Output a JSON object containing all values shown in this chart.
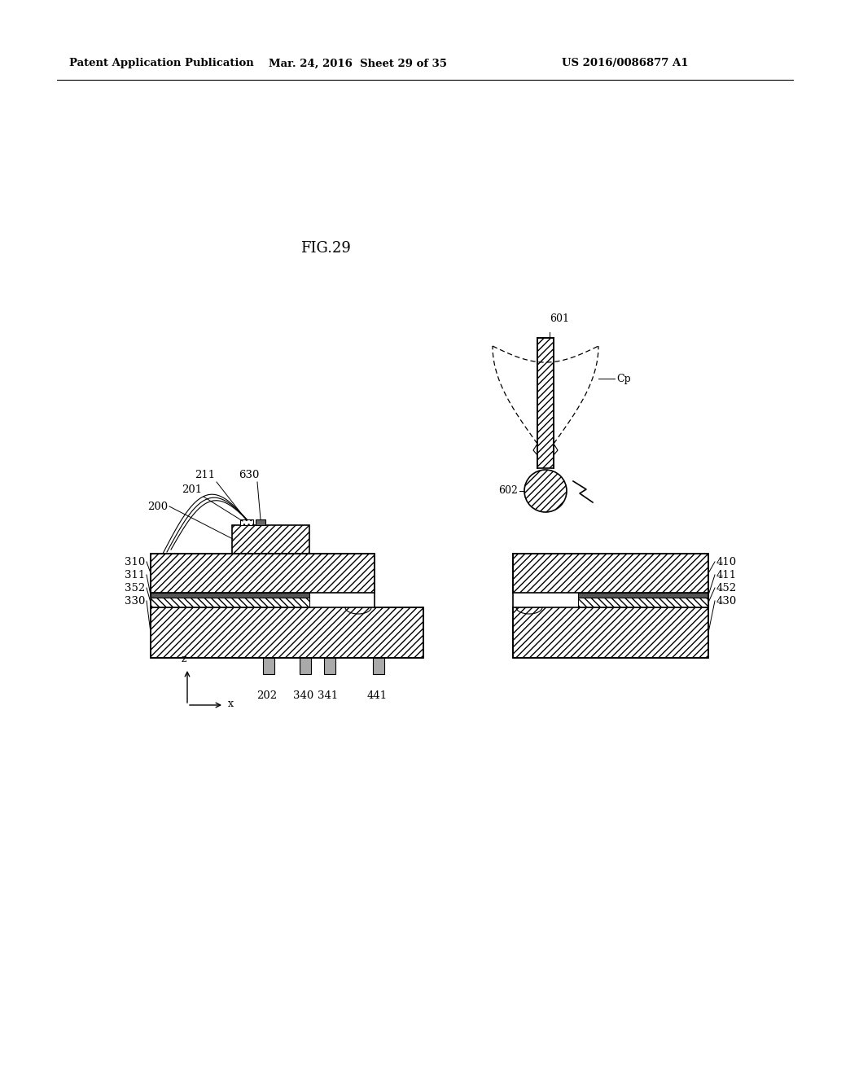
{
  "bg_color": "#ffffff",
  "title_text": "FIG.29",
  "header_left": "Patent Application Publication",
  "header_center": "Mar. 24, 2016  Sheet 29 of 35",
  "header_right": "US 2016/0086877 A1",
  "figsize": [
    10.24,
    13.2
  ],
  "dpi": 100
}
